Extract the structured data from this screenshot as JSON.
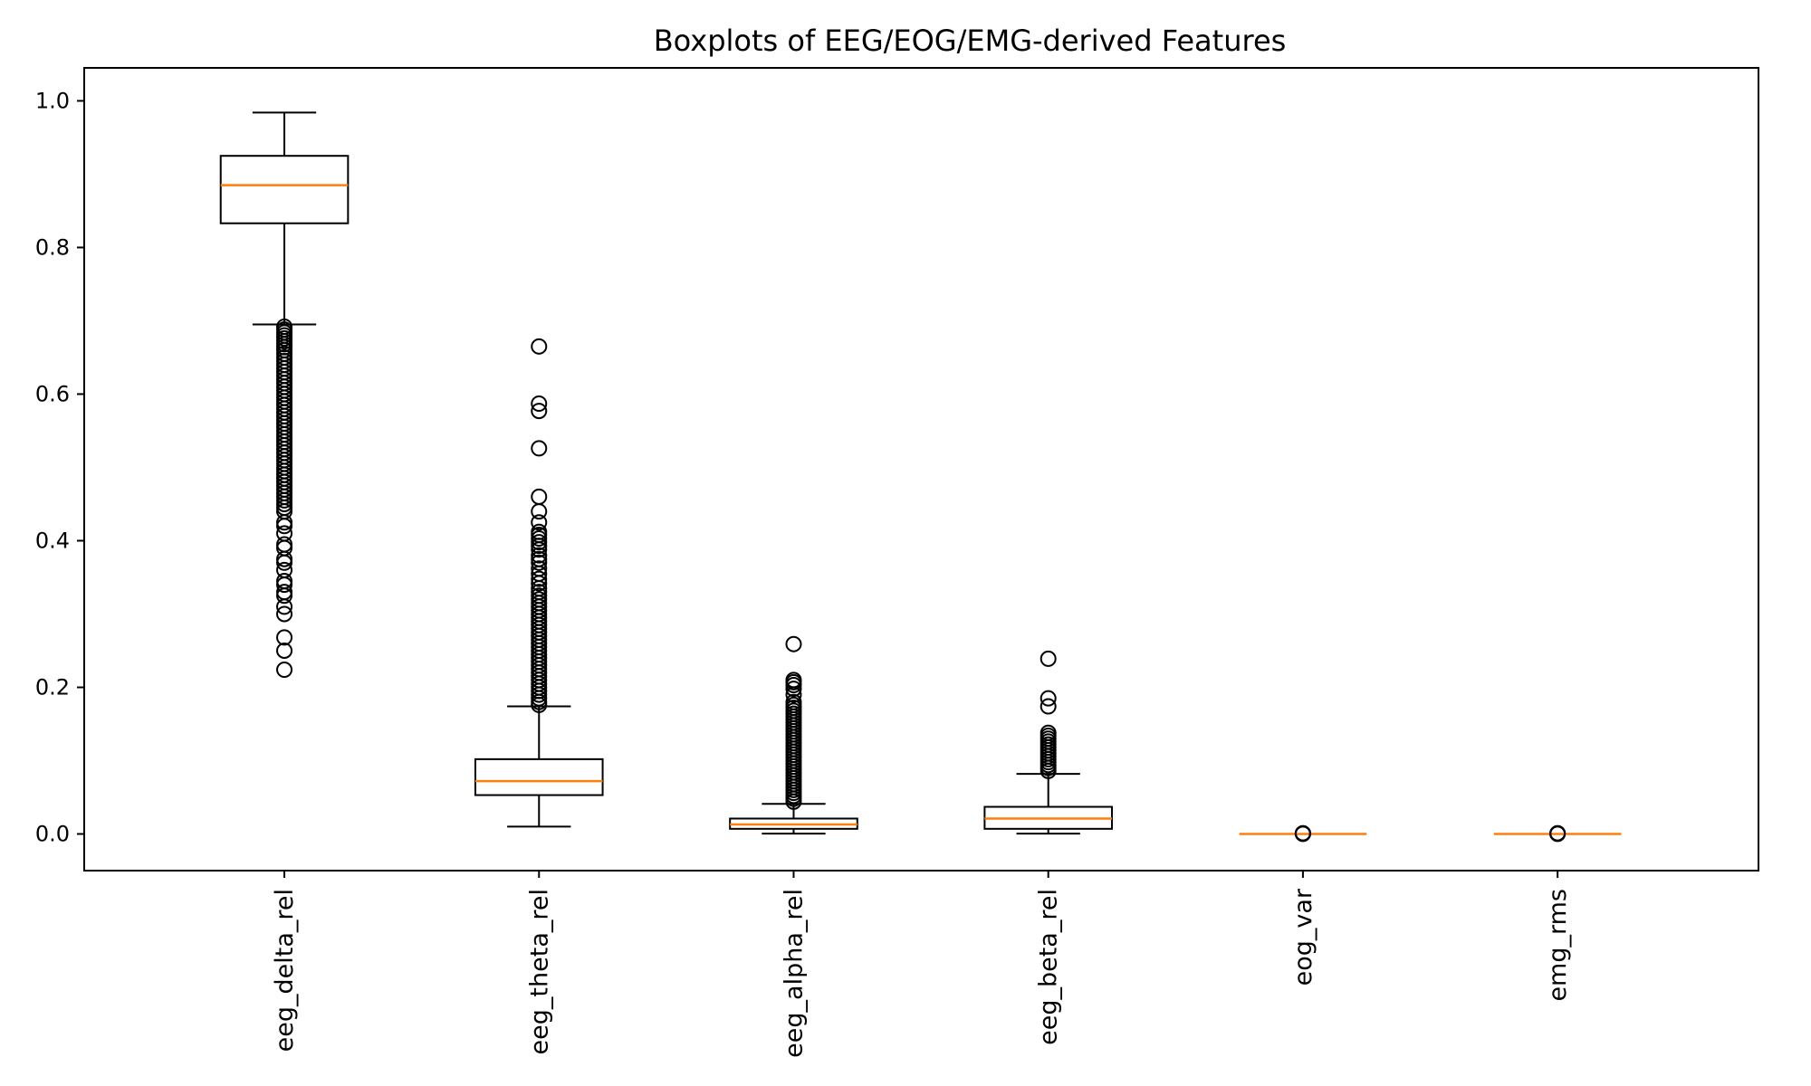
{
  "chart_data": {
    "type": "boxplot",
    "title": "Boxplots of EEG/EOG/EMG-derived Features",
    "xlabel": "",
    "ylabel": "",
    "ylim": [
      -0.05,
      1.045
    ],
    "yticks": [
      "0.0",
      "0.2",
      "0.4",
      "0.6",
      "0.8",
      "1.0"
    ],
    "grid": false,
    "legend": "none",
    "colors": {
      "box": "#000000",
      "median": "#ff7f0e",
      "flier": "#000000"
    },
    "categories": [
      "eeg_delta_rel",
      "eeg_theta_rel",
      "eeg_alpha_rel",
      "eeg_beta_rel",
      "eog_var",
      "emg_rms"
    ],
    "boxes": [
      {
        "name": "eeg_delta_rel",
        "whisker_low": 0.695,
        "q1": 0.833,
        "median": 0.885,
        "q3": 0.925,
        "whisker_high": 0.984,
        "fliers": [
          0.692,
          0.688,
          0.684,
          0.68,
          0.676,
          0.672,
          0.668,
          0.664,
          0.66,
          0.655,
          0.65,
          0.645,
          0.64,
          0.635,
          0.63,
          0.625,
          0.62,
          0.615,
          0.61,
          0.605,
          0.6,
          0.595,
          0.59,
          0.585,
          0.58,
          0.575,
          0.57,
          0.565,
          0.56,
          0.555,
          0.55,
          0.545,
          0.54,
          0.535,
          0.53,
          0.525,
          0.52,
          0.515,
          0.51,
          0.505,
          0.5,
          0.495,
          0.49,
          0.485,
          0.48,
          0.475,
          0.47,
          0.465,
          0.46,
          0.455,
          0.45,
          0.445,
          0.44,
          0.425,
          0.42,
          0.41,
          0.395,
          0.39,
          0.375,
          0.37,
          0.36,
          0.345,
          0.34,
          0.33,
          0.325,
          0.31,
          0.3,
          0.268,
          0.25,
          0.224
        ]
      },
      {
        "name": "eeg_theta_rel",
        "whisker_low": 0.01,
        "q1": 0.053,
        "median": 0.072,
        "q3": 0.102,
        "whisker_high": 0.174,
        "fliers": [
          0.665,
          0.587,
          0.577,
          0.526,
          0.46,
          0.44,
          0.425,
          0.412,
          0.408,
          0.403,
          0.398,
          0.393,
          0.388,
          0.38,
          0.375,
          0.37,
          0.362,
          0.355,
          0.348,
          0.342,
          0.335,
          0.33,
          0.325,
          0.32,
          0.315,
          0.31,
          0.305,
          0.3,
          0.295,
          0.29,
          0.285,
          0.28,
          0.275,
          0.27,
          0.265,
          0.26,
          0.255,
          0.25,
          0.245,
          0.24,
          0.235,
          0.23,
          0.225,
          0.22,
          0.215,
          0.21,
          0.205,
          0.2,
          0.195,
          0.19,
          0.185,
          0.18,
          0.176
        ]
      },
      {
        "name": "eeg_alpha_rel",
        "whisker_low": 0.0005,
        "q1": 0.007,
        "median": 0.013,
        "q3": 0.021,
        "whisker_high": 0.041,
        "fliers": [
          0.259,
          0.21,
          0.207,
          0.203,
          0.198,
          0.19,
          0.18,
          0.176,
          0.172,
          0.168,
          0.164,
          0.16,
          0.156,
          0.152,
          0.148,
          0.144,
          0.14,
          0.136,
          0.132,
          0.128,
          0.124,
          0.12,
          0.116,
          0.112,
          0.108,
          0.104,
          0.1,
          0.096,
          0.092,
          0.088,
          0.084,
          0.08,
          0.076,
          0.072,
          0.068,
          0.064,
          0.06,
          0.056,
          0.052,
          0.048,
          0.044
        ]
      },
      {
        "name": "eeg_beta_rel",
        "whisker_low": 0.0005,
        "q1": 0.007,
        "median": 0.021,
        "q3": 0.037,
        "whisker_high": 0.082,
        "fliers": [
          0.239,
          0.185,
          0.174,
          0.138,
          0.134,
          0.13,
          0.126,
          0.122,
          0.118,
          0.114,
          0.11,
          0.106,
          0.102,
          0.098,
          0.094,
          0.09,
          0.086
        ]
      },
      {
        "name": "eog_var",
        "whisker_low": 0.0,
        "q1": 0.0,
        "median": 0.0,
        "q3": 0.0,
        "whisker_high": 0.0,
        "fliers": [
          0.0002,
          0.0004,
          0.0006,
          0.0008,
          0.001
        ]
      },
      {
        "name": "emg_rms",
        "whisker_low": 0.0,
        "q1": 0.0,
        "median": 0.0,
        "q3": 0.0,
        "whisker_high": 0.0,
        "fliers": [
          0.0002,
          0.0004,
          0.0006,
          0.0008,
          0.001
        ]
      }
    ]
  }
}
